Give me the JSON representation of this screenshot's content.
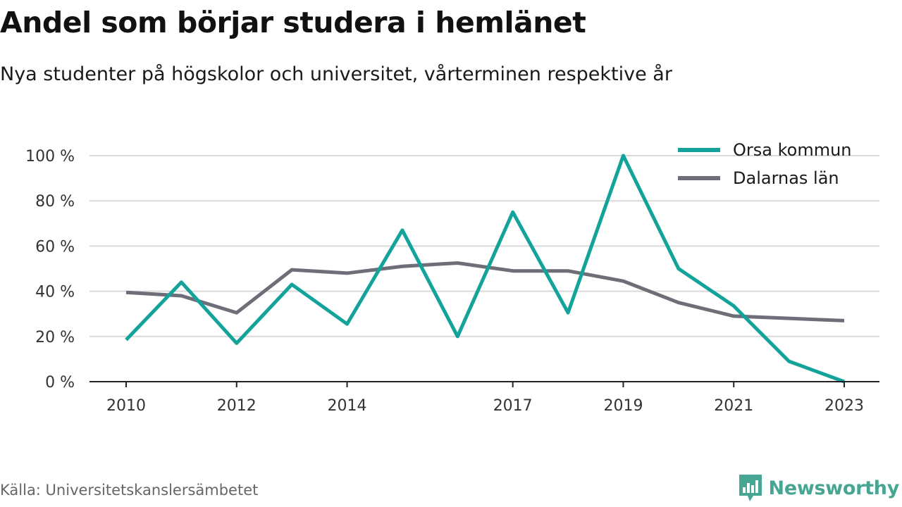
{
  "title": "Andel som börjar studera i hemlänet",
  "subtitle": "Nya studenter på högskolor och universitet, vårterminen respektive år",
  "source": "Källa: Universitetskanslersämbetet",
  "brand": "Newsworthy",
  "colors": {
    "orsa": "#13a39a",
    "dalarna": "#6e6e78",
    "grid": "#d9d9d9",
    "axis": "#222222",
    "brand": "#47a693"
  },
  "chart_data": {
    "type": "line",
    "x": [
      2010,
      2011,
      2012,
      2013,
      2014,
      2015,
      2016,
      2017,
      2018,
      2019,
      2020,
      2021,
      2022,
      2023
    ],
    "x_tick_labels": [
      "2010",
      "2012",
      "2014",
      "2017",
      "2019",
      "2021",
      "2023"
    ],
    "y_ticks": [
      0,
      20,
      40,
      60,
      80,
      100
    ],
    "y_tick_labels": [
      "0 %",
      "20 %",
      "40 %",
      "60 %",
      "80 %",
      "100 %"
    ],
    "ylim": [
      0,
      100
    ],
    "xlim": [
      2010,
      2023
    ],
    "grid": true,
    "legend_position": "top-right",
    "series": [
      {
        "name": "Orsa kommun",
        "values": [
          18.5,
          44,
          17,
          43,
          25.5,
          67,
          20,
          75,
          30.5,
          100,
          50,
          33.5,
          9,
          0
        ]
      },
      {
        "name": "Dalarnas län",
        "values": [
          39.5,
          38,
          30.5,
          49.5,
          48,
          51,
          52.5,
          49,
          49,
          44.5,
          35,
          29,
          28,
          27
        ]
      }
    ]
  }
}
